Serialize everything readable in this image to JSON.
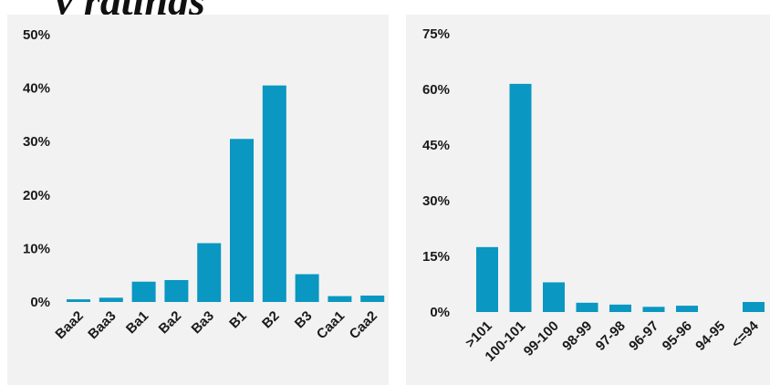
{
  "page": {
    "heading": "y ratings"
  },
  "colors": {
    "bar": "#0a97c2",
    "panel_bg": "#f2f2f2",
    "text": "#1a1a1a"
  },
  "chart_data": [
    {
      "type": "bar",
      "title": "",
      "xlabel": "",
      "ylabel": "",
      "ylim": [
        0,
        50
      ],
      "y_ticks": [
        "0%",
        "10%",
        "20%",
        "30%",
        "40%",
        "50%"
      ],
      "y_tick_values": [
        0,
        10,
        20,
        30,
        40,
        50
      ],
      "grid": false,
      "legend": "none",
      "categories": [
        "Baa2",
        "Baa3",
        "Ba1",
        "Ba2",
        "Ba3",
        "B1",
        "B2",
        "B3",
        "Caa1",
        "Caa2"
      ],
      "values": [
        0.5,
        0.8,
        3.8,
        4.1,
        11.0,
        30.5,
        40.5,
        5.2,
        1.1,
        1.2
      ]
    },
    {
      "type": "bar",
      "title": "",
      "xlabel": "",
      "ylabel": "",
      "ylim": [
        0,
        75
      ],
      "y_ticks": [
        "0%",
        "15%",
        "30%",
        "45%",
        "60%",
        "75%"
      ],
      "y_tick_values": [
        0,
        15,
        30,
        45,
        60,
        75
      ],
      "grid": false,
      "legend": "none",
      "categories": [
        ">101",
        "100-101",
        "99-100",
        "98-99",
        "97-98",
        "96-97",
        "95-96",
        "94-95",
        "<=94"
      ],
      "values": [
        17.5,
        61.5,
        8.0,
        2.5,
        2.0,
        1.4,
        1.7,
        0,
        2.7
      ]
    }
  ]
}
